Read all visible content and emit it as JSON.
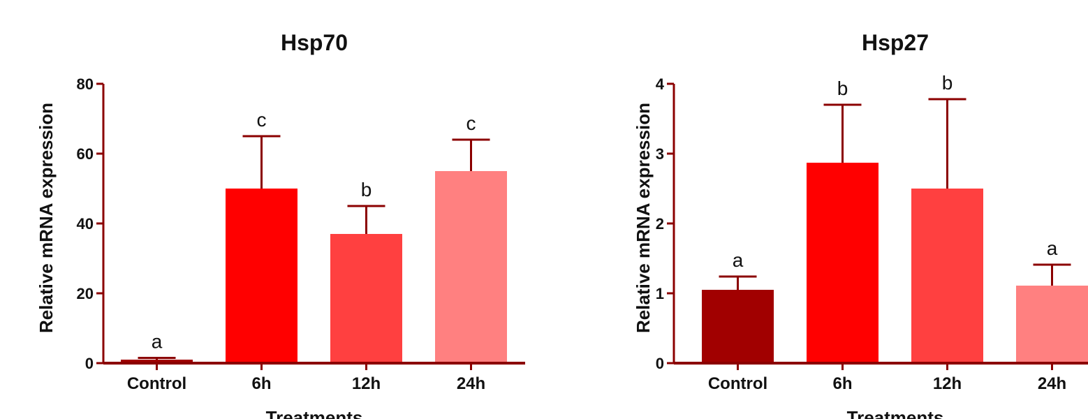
{
  "chart_data": [
    {
      "type": "bar",
      "title": "Hsp70",
      "ylabel": "Relative mRNA expression",
      "xlabel": "Treatments",
      "ylim": [
        0,
        80
      ],
      "yticks": [
        0,
        20,
        40,
        60,
        80
      ],
      "categories": [
        "Control",
        "6h",
        "12h",
        "24h"
      ],
      "values": [
        1,
        50,
        37,
        55
      ],
      "error_upper": [
        1.5,
        65,
        45,
        64
      ],
      "significance_labels": [
        "a",
        "c",
        "b",
        "c"
      ],
      "colors": [
        "#a10000",
        "#ff0000",
        "#ff4040",
        "#ff8080"
      ],
      "grid": false,
      "legend": "none"
    },
    {
      "type": "bar",
      "title": "Hsp27",
      "ylabel": "Relative mRNA expression",
      "xlabel": "Treatments",
      "ylim": [
        0,
        4
      ],
      "yticks": [
        0,
        1,
        2,
        3,
        4
      ],
      "categories": [
        "Control",
        "6h",
        "12h",
        "24h"
      ],
      "values": [
        1.05,
        2.87,
        2.5,
        1.11
      ],
      "error_upper": [
        1.24,
        3.7,
        3.78,
        1.41
      ],
      "significance_labels": [
        "a",
        "b",
        "b",
        "a"
      ],
      "colors": [
        "#a10000",
        "#ff0000",
        "#ff4040",
        "#ff8080"
      ],
      "grid": false,
      "legend": "none"
    }
  ]
}
